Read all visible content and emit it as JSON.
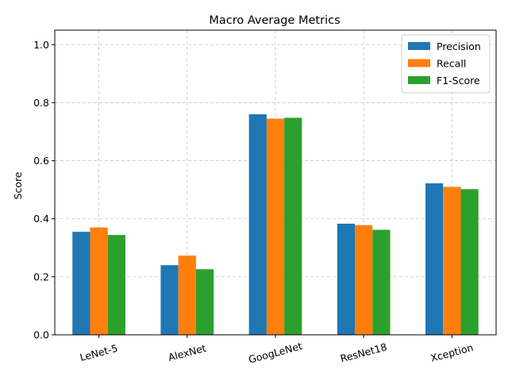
{
  "chart_data": {
    "type": "bar",
    "title": "Macro Average Metrics",
    "xlabel": "",
    "ylabel": "Score",
    "ylim": [
      0,
      1.05
    ],
    "yticks": [
      0.0,
      0.2,
      0.4,
      0.6,
      0.8,
      1.0
    ],
    "ytick_labels": [
      "0.0",
      "0.2",
      "0.4",
      "0.6",
      "0.8",
      "1.0"
    ],
    "categories": [
      "LeNet-5",
      "AlexNet",
      "GoogLeNet",
      "ResNet18",
      "Xception"
    ],
    "series": [
      {
        "name": "Precision",
        "color": "#1f77b4",
        "values": [
          0.355,
          0.24,
          0.76,
          0.383,
          0.522
        ]
      },
      {
        "name": "Recall",
        "color": "#ff7f0e",
        "values": [
          0.37,
          0.273,
          0.745,
          0.378,
          0.51
        ]
      },
      {
        "name": "F1-Score",
        "color": "#2ca02c",
        "values": [
          0.344,
          0.226,
          0.748,
          0.362,
          0.502
        ]
      }
    ],
    "grid": true,
    "grid_style": "dashed",
    "legend_position": "top-right",
    "xtick_rotation": "rotated"
  }
}
